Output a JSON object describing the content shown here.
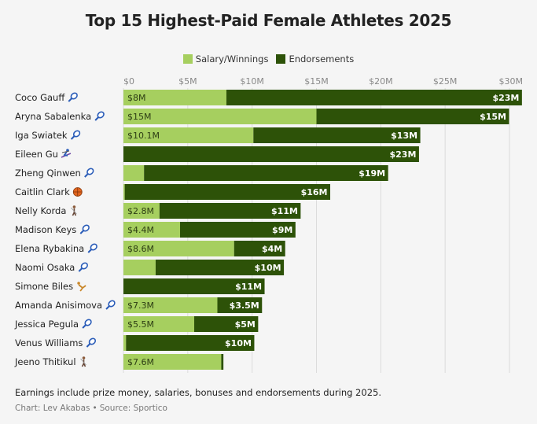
{
  "chart_data": {
    "type": "bar",
    "stacked": true,
    "orientation": "horizontal",
    "title": "Top 15 Highest-Paid Female Athletes 2025",
    "legend": {
      "position": "top-center"
    },
    "series": [
      {
        "name": "Salary/Winnings",
        "color": "#a6cf5f"
      },
      {
        "name": "Endorsements",
        "color": "#2d5208"
      }
    ],
    "xlim": [
      0,
      30
    ],
    "x_ticks": [
      0,
      5,
      10,
      15,
      20,
      25,
      30
    ],
    "x_tick_labels": [
      "$0",
      "$5M",
      "$10M",
      "$15M",
      "$20M",
      "$25M",
      "$30M"
    ],
    "grid": true,
    "rows": [
      {
        "name": "Coco Gauff",
        "sport_icon": "tennis-racket-icon",
        "salary": 8,
        "endorsements": 23,
        "salary_label": "$8M",
        "endorsements_label": "$23M"
      },
      {
        "name": "Aryna Sabalenka",
        "sport_icon": "tennis-racket-icon",
        "salary": 15,
        "endorsements": 15,
        "salary_label": "$15M",
        "endorsements_label": "$15M"
      },
      {
        "name": "Iga Swiatek",
        "sport_icon": "tennis-racket-icon",
        "salary": 10.1,
        "endorsements": 13,
        "salary_label": "$10.1M",
        "endorsements_label": "$13M"
      },
      {
        "name": "Eileen Gu",
        "sport_icon": "skier-icon",
        "salary": 0,
        "endorsements": 23,
        "salary_label": "",
        "endorsements_label": "$23M"
      },
      {
        "name": "Zheng Qinwen",
        "sport_icon": "tennis-racket-icon",
        "salary": 1.6,
        "endorsements": 19,
        "salary_label": "",
        "endorsements_label": "$19M"
      },
      {
        "name": "Caitlin Clark",
        "sport_icon": "basketball-icon",
        "salary": 0.1,
        "endorsements": 16,
        "salary_label": "",
        "endorsements_label": "$16M"
      },
      {
        "name": "Nelly Korda",
        "sport_icon": "golfer-icon",
        "salary": 2.8,
        "endorsements": 11,
        "salary_label": "$2.8M",
        "endorsements_label": "$11M"
      },
      {
        "name": "Madison Keys",
        "sport_icon": "tennis-racket-icon",
        "salary": 4.4,
        "endorsements": 9,
        "salary_label": "$4.4M",
        "endorsements_label": "$9M"
      },
      {
        "name": "Elena Rybakina",
        "sport_icon": "tennis-racket-icon",
        "salary": 8.6,
        "endorsements": 4,
        "salary_label": "$8.6M",
        "endorsements_label": "$4M"
      },
      {
        "name": "Naomi Osaka",
        "sport_icon": "tennis-racket-icon",
        "salary": 2.5,
        "endorsements": 10,
        "salary_label": "",
        "endorsements_label": "$10M"
      },
      {
        "name": "Simone Biles",
        "sport_icon": "gymnast-icon",
        "salary": 0,
        "endorsements": 11,
        "salary_label": "",
        "endorsements_label": "$11M"
      },
      {
        "name": "Amanda Anisimova",
        "sport_icon": "tennis-racket-icon",
        "salary": 7.3,
        "endorsements": 3.5,
        "salary_label": "$7.3M",
        "endorsements_label": "$3.5M"
      },
      {
        "name": "Jessica Pegula",
        "sport_icon": "tennis-racket-icon",
        "salary": 5.5,
        "endorsements": 5,
        "salary_label": "$5.5M",
        "endorsements_label": "$5M"
      },
      {
        "name": "Venus Williams",
        "sport_icon": "tennis-racket-icon",
        "salary": 0.2,
        "endorsements": 10,
        "salary_label": "",
        "endorsements_label": "$10M"
      },
      {
        "name": "Jeeno Thitikul",
        "sport_icon": "golfer-icon",
        "salary": 7.6,
        "endorsements": 0.2,
        "salary_label": "$7.6M",
        "endorsements_label": ""
      }
    ],
    "footnote": "Earnings include prize money, salaries, bonuses and endorsements during 2025.",
    "credit_chart": "Chart: Lev Akabas",
    "credit_separator": "•",
    "credit_source": "Source: Sportico"
  }
}
